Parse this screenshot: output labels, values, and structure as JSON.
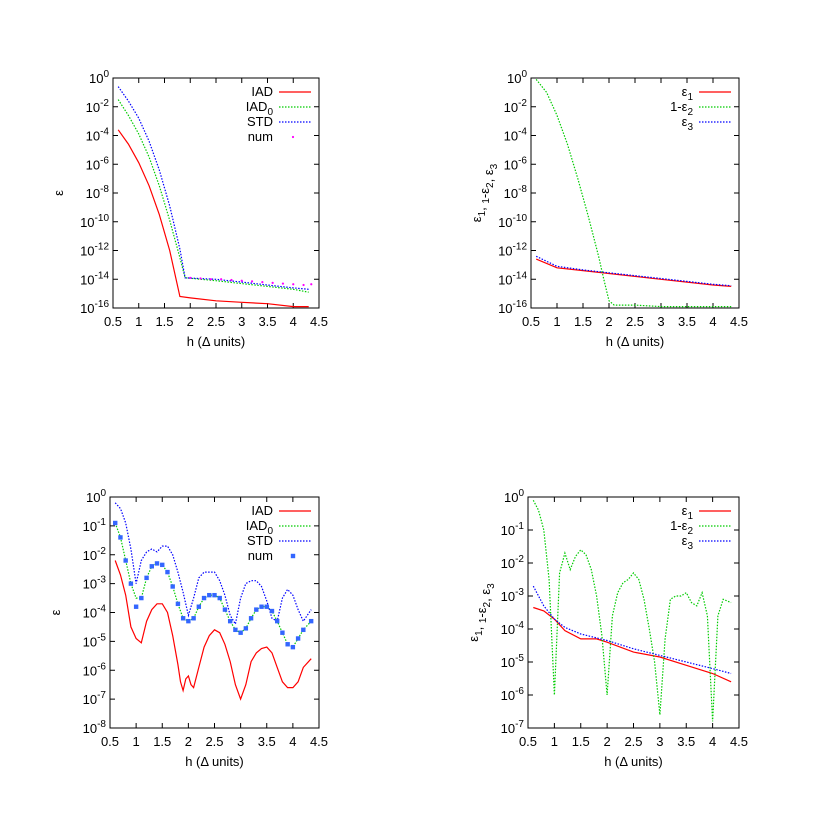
{
  "chart_data": [
    {
      "type": "line",
      "xlabel": "h (Δ units)",
      "ylabel": "ε",
      "xlim": [
        0.5,
        4.5
      ],
      "ylim_log10": [
        -16,
        0
      ],
      "yscale": "log",
      "xticks": [
        "0.5",
        "1",
        "1.5",
        "2",
        "2.5",
        "3",
        "3.5",
        "4",
        "4.5"
      ],
      "ytick_exponents": [
        "0",
        "-2",
        "-4",
        "-6",
        "-8",
        "-10",
        "-12",
        "-14",
        "-16"
      ],
      "legend_position": "top-right",
      "series": [
        {
          "name": "IAD",
          "subscript": "",
          "color": "#ff0000",
          "style": "solid",
          "x": [
            0.6,
            0.8,
            1.0,
            1.2,
            1.4,
            1.6,
            1.7,
            1.8,
            2.0,
            2.5,
            3.0,
            3.5,
            4.0,
            4.3
          ],
          "log10_y": [
            -3.6,
            -4.6,
            -5.9,
            -7.5,
            -9.5,
            -12.0,
            -13.6,
            -15.2,
            -15.3,
            -15.5,
            -15.6,
            -15.7,
            -15.9,
            -15.9
          ]
        },
        {
          "name": "IAD",
          "subscript": "0",
          "color": "#00cc00",
          "style": "dotted",
          "x": [
            0.6,
            0.8,
            1.0,
            1.2,
            1.4,
            1.6,
            1.8,
            1.9,
            2.5,
            3.0,
            3.5,
            4.0,
            4.3
          ],
          "log10_y": [
            -1.5,
            -2.6,
            -3.9,
            -5.5,
            -7.5,
            -9.9,
            -12.5,
            -13.9,
            -14.1,
            -14.3,
            -14.5,
            -14.7,
            -14.9
          ]
        },
        {
          "name": "STD",
          "subscript": "",
          "color": "#0000ff",
          "style": "dotted",
          "x": [
            0.6,
            0.8,
            1.0,
            1.2,
            1.4,
            1.6,
            1.8,
            1.9,
            2.5,
            3.0,
            3.5,
            4.0,
            4.3
          ],
          "log10_y": [
            -0.6,
            -1.6,
            -2.8,
            -4.4,
            -6.4,
            -8.9,
            -11.9,
            -13.9,
            -14.0,
            -14.2,
            -14.4,
            -14.6,
            -14.7
          ]
        },
        {
          "name": "num",
          "subscript": "",
          "color": "#ff00ff",
          "style": "points",
          "x": [
            2.0,
            2.2,
            2.4,
            2.6,
            2.8,
            3.0,
            3.2,
            3.4,
            3.6,
            3.8,
            4.0,
            4.2,
            4.35
          ],
          "log10_y": [
            -13.9,
            -13.95,
            -14.0,
            -14.0,
            -14.05,
            -14.1,
            -14.15,
            -14.2,
            -14.25,
            -14.3,
            -14.35,
            -14.4,
            -14.35
          ]
        }
      ]
    },
    {
      "type": "line",
      "xlabel": "h (Δ units)",
      "ylabel": "ε1, 1-ε2, ε3",
      "xlim": [
        0.5,
        4.5
      ],
      "ylim_log10": [
        -16,
        0
      ],
      "yscale": "log",
      "xticks": [
        "0.5",
        "1",
        "1.5",
        "2",
        "2.5",
        "3",
        "3.5",
        "4",
        "4.5"
      ],
      "ytick_exponents": [
        "0",
        "-2",
        "-4",
        "-6",
        "-8",
        "-10",
        "-12",
        "-14",
        "-16"
      ],
      "legend_position": "top-right",
      "series": [
        {
          "name": "ε",
          "subscript": "1",
          "prefix": "",
          "color": "#ff0000",
          "style": "solid",
          "x": [
            0.6,
            1.0,
            1.5,
            2.0,
            2.5,
            3.0,
            3.5,
            4.0,
            4.35
          ],
          "log10_y": [
            -12.6,
            -13.2,
            -13.4,
            -13.6,
            -13.8,
            -14.0,
            -14.2,
            -14.4,
            -14.5
          ]
        },
        {
          "name": "ε",
          "subscript": "2",
          "prefix": "1-",
          "color": "#00cc00",
          "style": "dotted",
          "x": [
            0.6,
            0.8,
            1.0,
            1.2,
            1.4,
            1.6,
            1.8,
            1.9,
            2.0,
            2.1,
            2.5,
            3.0,
            3.5,
            4.0,
            4.35
          ],
          "log10_y": [
            -0.1,
            -1.0,
            -2.6,
            -4.6,
            -7.0,
            -9.6,
            -12.4,
            -14.0,
            -15.5,
            -15.8,
            -15.8,
            -15.9,
            -15.9,
            -15.9,
            -15.9
          ]
        },
        {
          "name": "ε",
          "subscript": "3",
          "prefix": "",
          "color": "#0000ff",
          "style": "dotted",
          "x": [
            0.6,
            1.0,
            1.5,
            2.0,
            2.5,
            3.0,
            3.5,
            4.0,
            4.35
          ],
          "log10_y": [
            -12.4,
            -13.1,
            -13.35,
            -13.55,
            -13.75,
            -13.95,
            -14.15,
            -14.35,
            -14.45
          ]
        }
      ]
    },
    {
      "type": "line",
      "xlabel": "h (Δ units)",
      "ylabel": "ε",
      "xlim": [
        0.5,
        4.5
      ],
      "ylim_log10": [
        -8,
        0
      ],
      "yscale": "log",
      "xticks": [
        "0.5",
        "1",
        "1.5",
        "2",
        "2.5",
        "3",
        "3.5",
        "4",
        "4.5"
      ],
      "ytick_exponents": [
        "0",
        "-1",
        "-2",
        "-3",
        "-4",
        "-5",
        "-6",
        "-7",
        "-8"
      ],
      "legend_position": "top-right",
      "series": [
        {
          "name": "IAD",
          "subscript": "",
          "color": "#ff0000",
          "style": "solid",
          "x": [
            0.6,
            0.7,
            0.8,
            0.9,
            1.0,
            1.1,
            1.2,
            1.3,
            1.4,
            1.5,
            1.6,
            1.7,
            1.8,
            1.85,
            1.9,
            1.95,
            2.0,
            2.05,
            2.1,
            2.2,
            2.3,
            2.4,
            2.5,
            2.6,
            2.7,
            2.8,
            2.9,
            3.0,
            3.1,
            3.2,
            3.3,
            3.4,
            3.5,
            3.6,
            3.7,
            3.8,
            3.9,
            4.0,
            4.1,
            4.2,
            4.35
          ],
          "log10_y": [
            -2.2,
            -2.7,
            -3.4,
            -4.5,
            -4.9,
            -5.05,
            -4.3,
            -3.9,
            -3.7,
            -3.7,
            -4.0,
            -4.8,
            -5.8,
            -6.4,
            -6.7,
            -6.3,
            -6.2,
            -6.5,
            -6.6,
            -5.9,
            -5.2,
            -4.8,
            -4.6,
            -4.7,
            -5.1,
            -5.7,
            -6.5,
            -7.0,
            -6.5,
            -5.7,
            -5.4,
            -5.25,
            -5.2,
            -5.4,
            -5.9,
            -6.4,
            -6.6,
            -6.6,
            -6.4,
            -5.9,
            -5.6
          ]
        },
        {
          "name": "IAD",
          "subscript": "0",
          "color": "#00cc00",
          "style": "dotted",
          "x": [
            0.6,
            0.7,
            0.8,
            0.9,
            1.0,
            1.1,
            1.2,
            1.3,
            1.4,
            1.5,
            1.6,
            1.7,
            1.8,
            1.9,
            2.0,
            2.1,
            2.2,
            2.3,
            2.4,
            2.5,
            2.6,
            2.7,
            2.8,
            2.9,
            3.0,
            3.1,
            3.2,
            3.3,
            3.4,
            3.5,
            3.6,
            3.7,
            3.8,
            3.9,
            4.0,
            4.1,
            4.2,
            4.35
          ],
          "log10_y": [
            -0.9,
            -1.4,
            -2.2,
            -3.0,
            -3.5,
            -3.5,
            -2.8,
            -2.4,
            -2.3,
            -2.35,
            -2.6,
            -3.1,
            -3.7,
            -4.2,
            -4.3,
            -4.2,
            -3.8,
            -3.5,
            -3.4,
            -3.4,
            -3.5,
            -3.9,
            -4.3,
            -4.6,
            -4.7,
            -4.55,
            -4.2,
            -3.9,
            -3.8,
            -3.8,
            -3.95,
            -4.3,
            -4.7,
            -5.1,
            -5.2,
            -4.9,
            -4.6,
            -4.3
          ]
        },
        {
          "name": "STD",
          "subscript": "",
          "color": "#0000ff",
          "style": "dotted",
          "x": [
            0.6,
            0.7,
            0.8,
            0.9,
            1.0,
            1.1,
            1.2,
            1.3,
            1.4,
            1.5,
            1.6,
            1.7,
            1.8,
            1.9,
            2.0,
            2.1,
            2.2,
            2.3,
            2.4,
            2.5,
            2.6,
            2.7,
            2.8,
            2.9,
            3.0,
            3.1,
            3.2,
            3.3,
            3.4,
            3.5,
            3.6,
            3.7,
            3.8,
            3.9,
            4.0,
            4.1,
            4.2,
            4.35
          ],
          "log10_y": [
            -0.2,
            -0.4,
            -0.9,
            -1.8,
            -3.0,
            -2.2,
            -1.9,
            -1.8,
            -1.9,
            -1.7,
            -1.7,
            -2.0,
            -2.6,
            -3.3,
            -4.1,
            -3.5,
            -2.8,
            -2.6,
            -2.6,
            -2.6,
            -2.9,
            -3.4,
            -4.1,
            -4.4,
            -3.5,
            -3.0,
            -2.9,
            -2.9,
            -3.1,
            -3.6,
            -4.2,
            -4.3,
            -3.5,
            -3.2,
            -3.4,
            -3.9,
            -4.3,
            -3.9
          ]
        },
        {
          "name": "num",
          "subscript": "",
          "color": "#3366ff",
          "style": "points",
          "x": [
            0.6,
            0.7,
            0.8,
            0.9,
            1.0,
            1.1,
            1.2,
            1.3,
            1.4,
            1.5,
            1.6,
            1.7,
            1.8,
            1.9,
            2.0,
            2.1,
            2.2,
            2.3,
            2.4,
            2.5,
            2.6,
            2.7,
            2.8,
            2.9,
            3.0,
            3.1,
            3.2,
            3.3,
            3.4,
            3.5,
            3.6,
            3.7,
            3.8,
            3.9,
            4.0,
            4.1,
            4.2,
            4.35
          ],
          "log10_y": [
            -0.9,
            -1.4,
            -2.2,
            -3.0,
            -3.8,
            -3.5,
            -2.8,
            -2.4,
            -2.3,
            -2.35,
            -2.6,
            -3.1,
            -3.7,
            -4.2,
            -4.3,
            -4.2,
            -3.8,
            -3.5,
            -3.4,
            -3.4,
            -3.5,
            -3.9,
            -4.3,
            -4.6,
            -4.7,
            -4.55,
            -4.2,
            -3.9,
            -3.8,
            -3.8,
            -3.95,
            -4.3,
            -4.7,
            -5.1,
            -5.2,
            -4.9,
            -4.6,
            -4.3
          ]
        }
      ]
    },
    {
      "type": "line",
      "xlabel": "h (Δ units)",
      "ylabel": "ε1, 1-ε2, ε3",
      "xlim": [
        0.5,
        4.5
      ],
      "ylim_log10": [
        -7,
        0
      ],
      "yscale": "log",
      "xticks": [
        "0.5",
        "1",
        "1.5",
        "2",
        "2.5",
        "3",
        "3.5",
        "4",
        "4.5"
      ],
      "ytick_exponents": [
        "0",
        "-1",
        "-2",
        "-3",
        "-4",
        "-5",
        "-6",
        "-7"
      ],
      "legend_position": "top-right",
      "series": [
        {
          "name": "ε",
          "subscript": "1",
          "prefix": "",
          "color": "#ff0000",
          "style": "solid",
          "x": [
            0.6,
            0.8,
            1.0,
            1.2,
            1.5,
            1.8,
            2.0,
            2.5,
            3.0,
            3.5,
            4.0,
            4.35
          ],
          "log10_y": [
            -3.35,
            -3.45,
            -3.7,
            -4.05,
            -4.3,
            -4.3,
            -4.4,
            -4.7,
            -4.85,
            -5.1,
            -5.35,
            -5.6
          ]
        },
        {
          "name": "ε",
          "subscript": "2",
          "prefix": "1-",
          "color": "#00cc00",
          "style": "dotted",
          "x": [
            0.6,
            0.7,
            0.8,
            0.9,
            1.0,
            1.1,
            1.2,
            1.3,
            1.4,
            1.5,
            1.6,
            1.7,
            1.8,
            1.9,
            2.0,
            2.1,
            2.2,
            2.3,
            2.4,
            2.5,
            2.6,
            2.7,
            2.8,
            2.9,
            3.0,
            3.1,
            3.2,
            3.3,
            3.4,
            3.5,
            3.6,
            3.7,
            3.8,
            3.9,
            4.0,
            4.1,
            4.2,
            4.35
          ],
          "log10_y": [
            -0.1,
            -0.4,
            -1.0,
            -2.5,
            -6.0,
            -2.3,
            -1.7,
            -2.2,
            -1.8,
            -1.6,
            -1.75,
            -2.2,
            -3.0,
            -4.2,
            -6.0,
            -3.6,
            -2.9,
            -2.6,
            -2.5,
            -2.3,
            -2.5,
            -3.1,
            -4.0,
            -5.0,
            -6.6,
            -4.3,
            -3.1,
            -3.0,
            -3.0,
            -2.9,
            -3.2,
            -3.3,
            -2.9,
            -3.6,
            -6.8,
            -3.6,
            -3.1,
            -3.2
          ]
        },
        {
          "name": "ε",
          "subscript": "3",
          "prefix": "",
          "color": "#0000ff",
          "style": "dotted",
          "x": [
            0.6,
            0.7,
            0.8,
            0.9,
            1.0,
            1.2,
            1.5,
            2.0,
            2.5,
            3.0,
            3.5,
            4.0,
            4.35
          ],
          "log10_y": [
            -2.7,
            -3.0,
            -3.3,
            -3.5,
            -3.7,
            -3.95,
            -4.15,
            -4.35,
            -4.6,
            -4.8,
            -5.0,
            -5.2,
            -5.35
          ]
        }
      ]
    }
  ]
}
